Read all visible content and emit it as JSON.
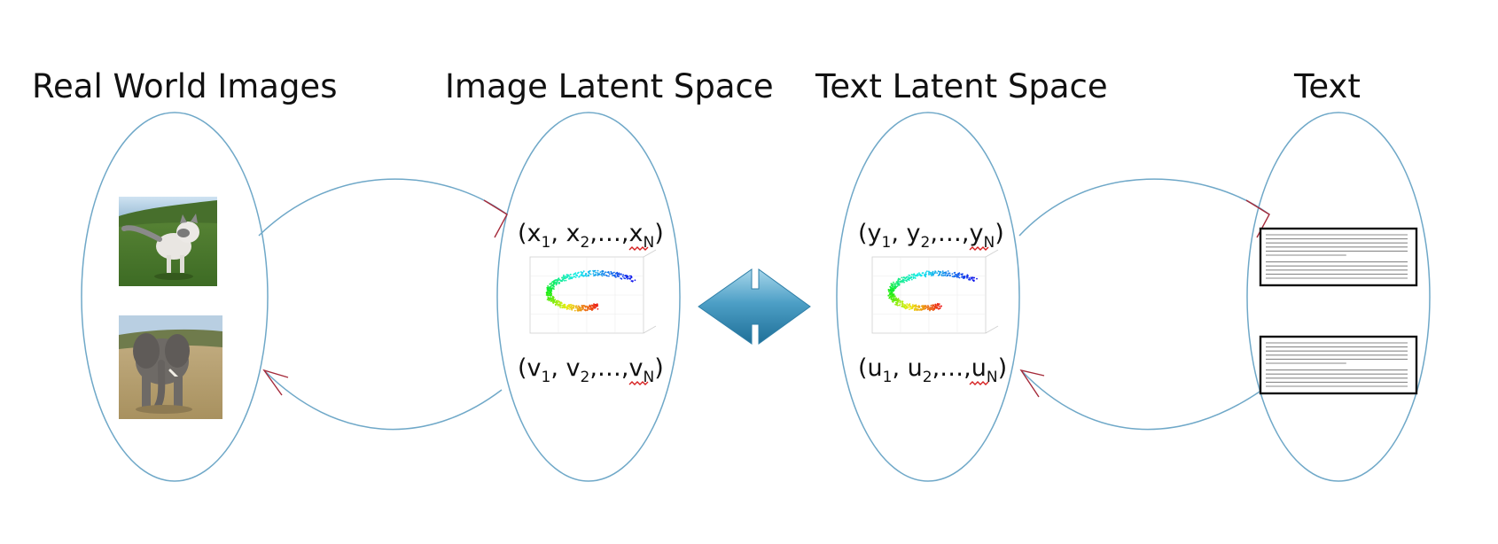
{
  "headers": {
    "real_world_images": "Real World Images",
    "image_latent_space": "Image Latent Space",
    "text_latent_space": "Text Latent Space",
    "text": "Text"
  },
  "sequences": {
    "x": {
      "open": "(x",
      "sub1": "1",
      "mid1": ", x",
      "sub2": "2",
      "mid2": ",…,x",
      "subN": "N",
      "close": ")"
    },
    "v": {
      "open": "(v",
      "sub1": "1",
      "mid1": ", v",
      "sub2": "2",
      "mid2": ",…,v",
      "subN": "N",
      "close": ")"
    },
    "y": {
      "open": "(y",
      "sub1": "1",
      "mid1": ", y",
      "sub2": "2",
      "mid2": ",…,y",
      "subN": "N",
      "close": ")"
    },
    "u": {
      "open": "(u",
      "sub1": "1",
      "mid1": ", u",
      "sub2": "2",
      "mid2": ",…,u",
      "subN": "N",
      "close": ")"
    }
  },
  "images": [
    "cat",
    "elephant"
  ],
  "colors": {
    "ellipse": "#6fa8c8",
    "arrow_head": "#a52a3a",
    "double_arrow_light": "#8cc7df",
    "double_arrow_dark": "#2b7ea8"
  }
}
